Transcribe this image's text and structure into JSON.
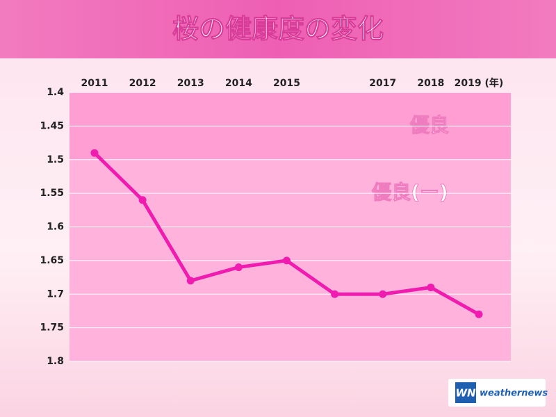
{
  "chart_data": {
    "type": "line",
    "title": "桜の健康度の変化",
    "categories": [
      "2011",
      "2012",
      "2013",
      "2014",
      "2015",
      null,
      "2017",
      "2018",
      "2019 (年)"
    ],
    "series": [
      {
        "color": "#f01cb0",
        "values": [
          1.49,
          1.56,
          1.68,
          1.66,
          1.65,
          1.7,
          1.7,
          1.69,
          1.73
        ]
      }
    ],
    "ylim": [
      1.4,
      1.8
    ],
    "y_inverted": true,
    "yticks": [
      1.4,
      1.45,
      1.5,
      1.55,
      1.6,
      1.65,
      1.7,
      1.75,
      1.8
    ],
    "grid": true,
    "bands": [
      {
        "from": 1.4,
        "to": 1.5,
        "label": "優良",
        "color": "#ff9ed2"
      },
      {
        "from": 1.5,
        "to": 1.8,
        "label": "優良(ー)",
        "color": "#ffb3dc"
      }
    ]
  },
  "logo": {
    "mark": "WN",
    "text": "weathernews"
  }
}
